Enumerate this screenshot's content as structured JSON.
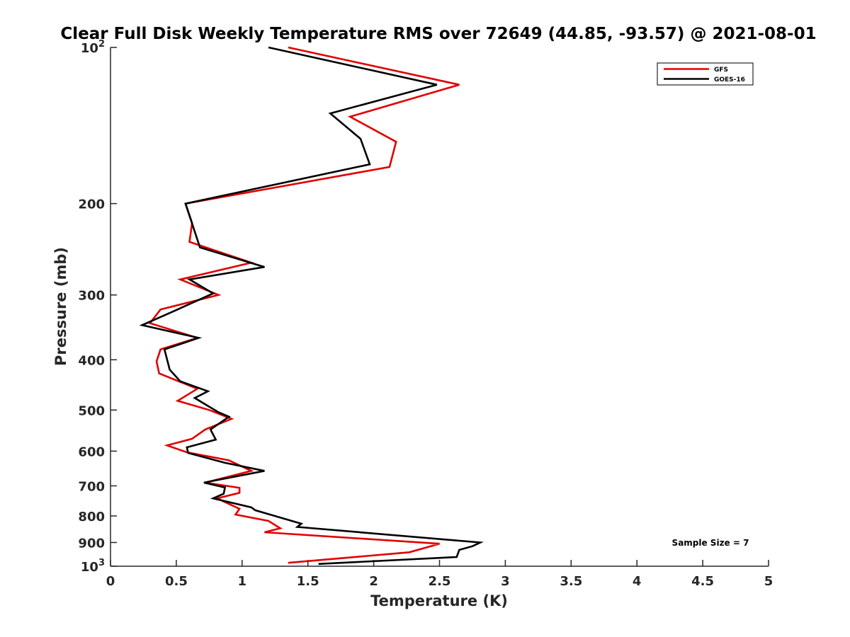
{
  "chart_data": {
    "type": "line",
    "title": "Clear Full Disk Weekly Temperature RMS over 72649 (44.85, -93.57) @ 2021-08-01",
    "xlabel": "Temperature (K)",
    "ylabel": "Pressure (mb)",
    "xlim": [
      0,
      5
    ],
    "ylim": [
      100,
      1000
    ],
    "y_scale": "log",
    "y_reversed": true,
    "xticks": [
      0,
      0.5,
      1,
      1.5,
      2,
      2.5,
      3,
      3.5,
      4,
      4.5,
      5
    ],
    "xtick_labels": [
      "0",
      "0.5",
      "1",
      "1.5",
      "2",
      "2.5",
      "3",
      "3.5",
      "4",
      "4.5",
      "5"
    ],
    "yticks": [
      100,
      200,
      300,
      400,
      500,
      600,
      700,
      800,
      900,
      1000
    ],
    "ytick_labels": [
      {
        "base": "10",
        "exp": "2"
      },
      {
        "base": "200",
        "exp": ""
      },
      {
        "base": "300",
        "exp": ""
      },
      {
        "base": "400",
        "exp": ""
      },
      {
        "base": "500",
        "exp": ""
      },
      {
        "base": "600",
        "exp": ""
      },
      {
        "base": "700",
        "exp": ""
      },
      {
        "base": "800",
        "exp": ""
      },
      {
        "base": "900",
        "exp": ""
      },
      {
        "base": "10",
        "exp": "3"
      }
    ],
    "legend_position": "top-right",
    "annotation": "Sample Size = 7",
    "series": [
      {
        "name": "GFS",
        "color": "#e00000",
        "points": [
          [
            1.35,
            100
          ],
          [
            2.65,
            118
          ],
          [
            1.82,
            136
          ],
          [
            2.17,
            152
          ],
          [
            2.12,
            170
          ],
          [
            0.57,
            200
          ],
          [
            0.62,
            218
          ],
          [
            0.6,
            237
          ],
          [
            1.07,
            260
          ],
          [
            0.53,
            280
          ],
          [
            0.82,
            300
          ],
          [
            0.38,
            320
          ],
          [
            0.3,
            340
          ],
          [
            0.66,
            363
          ],
          [
            0.38,
            382
          ],
          [
            0.35,
            403
          ],
          [
            0.37,
            425
          ],
          [
            0.66,
            455
          ],
          [
            0.51,
            480
          ],
          [
            0.75,
            500
          ],
          [
            0.92,
            520
          ],
          [
            0.72,
            545
          ],
          [
            0.62,
            568
          ],
          [
            0.43,
            585
          ],
          [
            0.58,
            603
          ],
          [
            0.9,
            625
          ],
          [
            1.07,
            655
          ],
          [
            0.72,
            690
          ],
          [
            0.98,
            706
          ],
          [
            0.98,
            722
          ],
          [
            0.81,
            740
          ],
          [
            0.98,
            775
          ],
          [
            0.95,
            795
          ],
          [
            1.2,
            818
          ],
          [
            1.29,
            845
          ],
          [
            1.17,
            860
          ],
          [
            2.5,
            905
          ],
          [
            2.4,
            920
          ],
          [
            2.27,
            940
          ],
          [
            1.35,
            985
          ]
        ]
      },
      {
        "name": "GOES-16",
        "color": "#000000",
        "points": [
          [
            1.2,
            100
          ],
          [
            2.48,
            118
          ],
          [
            1.67,
            134
          ],
          [
            1.9,
            150
          ],
          [
            1.97,
            168
          ],
          [
            0.57,
            200
          ],
          [
            0.68,
            243
          ],
          [
            1.17,
            265
          ],
          [
            0.6,
            280
          ],
          [
            0.78,
            298
          ],
          [
            0.45,
            325
          ],
          [
            0.24,
            343
          ],
          [
            0.67,
            363
          ],
          [
            0.41,
            382
          ],
          [
            0.45,
            418
          ],
          [
            0.53,
            440
          ],
          [
            0.74,
            460
          ],
          [
            0.64,
            474
          ],
          [
            0.82,
            505
          ],
          [
            0.9,
            515
          ],
          [
            0.76,
            545
          ],
          [
            0.8,
            570
          ],
          [
            0.58,
            590
          ],
          [
            0.59,
            605
          ],
          [
            0.87,
            632
          ],
          [
            1.17,
            655
          ],
          [
            0.71,
            690
          ],
          [
            0.87,
            705
          ],
          [
            0.86,
            725
          ],
          [
            0.78,
            740
          ],
          [
            1.07,
            770
          ],
          [
            1.1,
            780
          ],
          [
            1.32,
            810
          ],
          [
            1.45,
            828
          ],
          [
            1.42,
            840
          ],
          [
            2.81,
            900
          ],
          [
            2.75,
            915
          ],
          [
            2.65,
            930
          ],
          [
            2.63,
            960
          ],
          [
            1.58,
            990
          ]
        ]
      }
    ]
  }
}
